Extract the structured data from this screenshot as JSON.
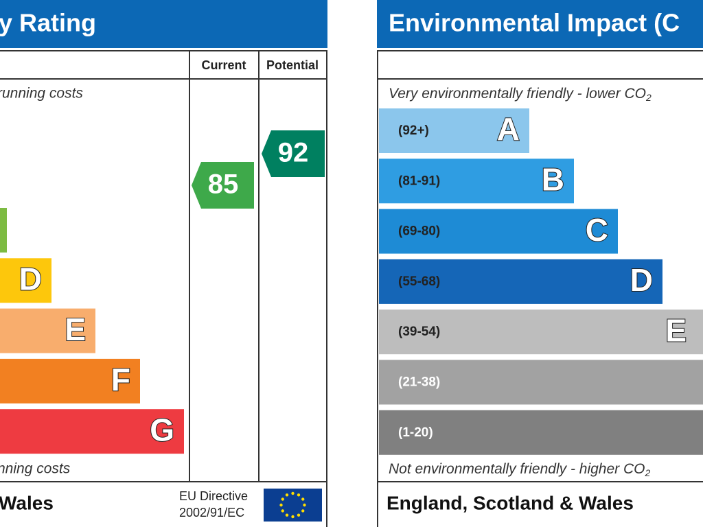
{
  "left": {
    "title": "y Rating",
    "top_note": "running costs",
    "bottom_note": "nning costs",
    "col_current": "Current",
    "col_potential": "Potential",
    "current": 85,
    "potential": 92,
    "footer": "Wales",
    "directive_1": "EU Directive",
    "directive_2": "2002/91/EC",
    "bands": [
      {
        "letter": null,
        "color": "#7dbb42"
      },
      {
        "letter": "D",
        "color": "#fdc70c"
      },
      {
        "letter": "E",
        "color": "#f8ad6d"
      },
      {
        "letter": "F",
        "color": "#f28021"
      },
      {
        "letter": "G",
        "color": "#ee3b41"
      }
    ]
  },
  "right": {
    "title": "Environmental Impact (C",
    "top_note": "Very environmentally friendly - lower CO",
    "top_sub": "2",
    "bottom_note": "Not environmentally friendly - higher CO",
    "bottom_sub": "2",
    "footer": "England, Scotland & Wales",
    "bands": [
      {
        "range": "(92+)",
        "letter": "A",
        "color": "#8bc6ec"
      },
      {
        "range": "(81-91)",
        "letter": "B",
        "color": "#2f9de2"
      },
      {
        "range": "(69-80)",
        "letter": "C",
        "color": "#1e8bd5"
      },
      {
        "range": "(55-68)",
        "letter": "D",
        "color": "#1566b7"
      },
      {
        "range": "(39-54)",
        "letter": "E",
        "color": "#bdbdbd"
      },
      {
        "range": "(21-38)",
        "letter": null,
        "color": "#a2a2a2"
      },
      {
        "range": "(1-20)",
        "letter": null,
        "color": "#808080"
      }
    ]
  }
}
